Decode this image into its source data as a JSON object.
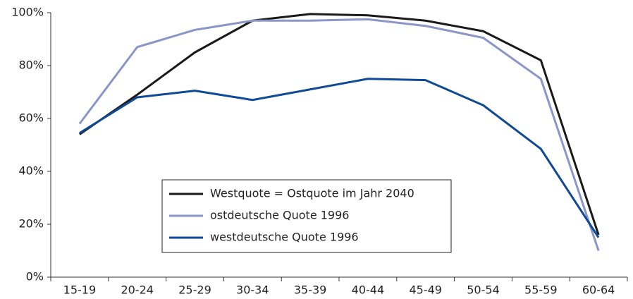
{
  "chart_data": {
    "type": "line",
    "categories": [
      "15-19",
      "20-24",
      "25-29",
      "30-34",
      "35-39",
      "40-44",
      "45-49",
      "50-54",
      "55-59",
      "60-64"
    ],
    "series": [
      {
        "name": "Westquote = Ostquote im Jahr 2040",
        "color": "#1a1a1a",
        "values": [
          54,
          69,
          85,
          97,
          99.5,
          99,
          97,
          93,
          82,
          16
        ]
      },
      {
        "name": "ostdeutsche Quote 1996",
        "color": "#8a96c8",
        "values": [
          58,
          87,
          93.5,
          97,
          97,
          97.5,
          95,
          90.5,
          75,
          10
        ]
      },
      {
        "name": "westdeutsche Quote 1996",
        "color": "#0f4a96",
        "values": [
          54.5,
          68,
          70.5,
          67,
          71,
          75,
          74.5,
          65,
          48.5,
          15
        ]
      }
    ],
    "ylim": [
      0,
      100
    ],
    "yticks": [
      {
        "value": 0,
        "label": "0%"
      },
      {
        "value": 20,
        "label": "20%"
      },
      {
        "value": 40,
        "label": "40%"
      },
      {
        "value": 60,
        "label": "60%"
      },
      {
        "value": 80,
        "label": "80%"
      },
      {
        "value": 100,
        "label": "100%"
      }
    ],
    "legend": "lower center"
  }
}
